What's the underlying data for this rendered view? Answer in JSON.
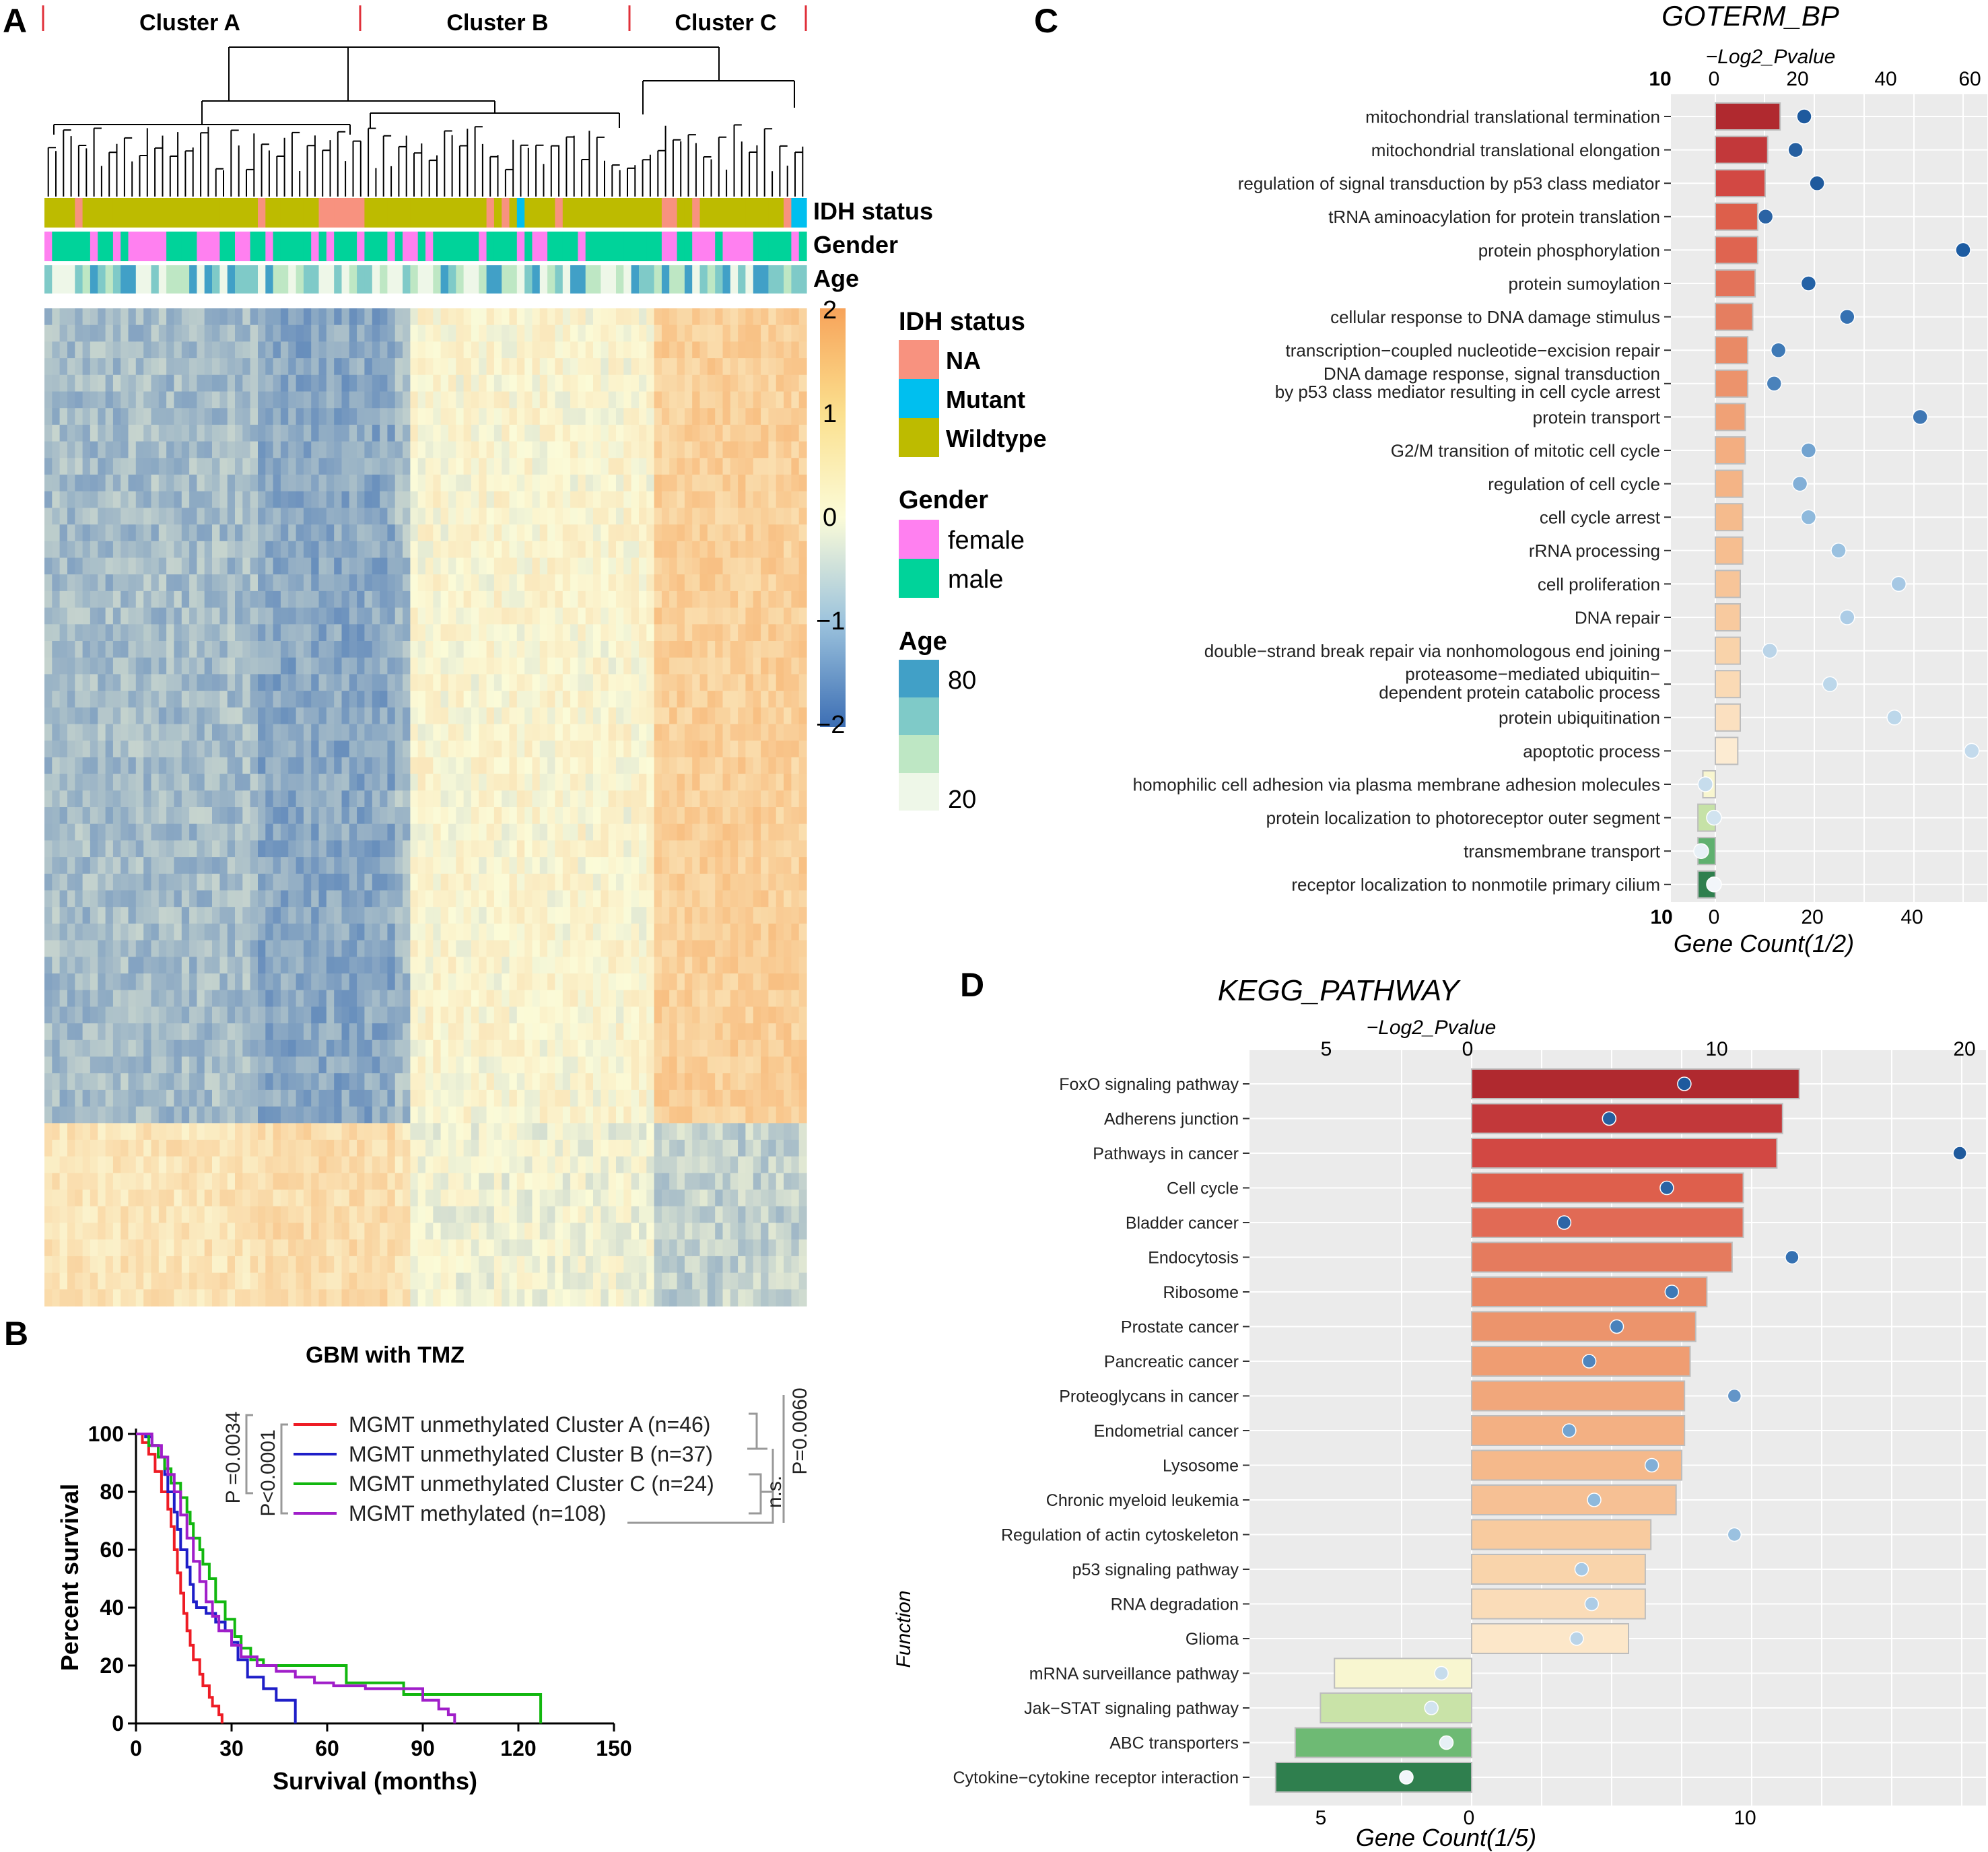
{
  "panel_labels": {
    "a": "A",
    "b": "B",
    "c": "C",
    "d": "D"
  },
  "heatmap": {
    "clusters": [
      "Cluster A",
      "Cluster B",
      "Cluster C"
    ],
    "track_labels": [
      "IDH status",
      "Gender",
      "Age"
    ],
    "colorbar_ticks": [
      "2",
      "1",
      "0",
      "−1",
      "−2"
    ],
    "legend": {
      "idh_title": "IDH status",
      "idh_items": [
        {
          "label": "NA",
          "color": "#F8927F"
        },
        {
          "label": "Mutant",
          "color": "#00BFEF"
        },
        {
          "label": "Wildtype",
          "color": "#BDBB00"
        }
      ],
      "gender_title": "Gender",
      "gender_items": [
        {
          "label": "female",
          "color": "#FF80F0"
        },
        {
          "label": "male",
          "color": "#00D39A"
        }
      ],
      "age_title": "Age",
      "age_items": [
        {
          "label": "80",
          "color": "#41A0C7"
        },
        {
          "label": "",
          "color": "#7FCAC8"
        },
        {
          "label": "",
          "color": "#BEE7C4"
        },
        {
          "label": "20",
          "color": "#EEF7E8"
        }
      ]
    },
    "colors": {
      "low": "#3C6EB4",
      "mid": "#FBFBD8",
      "high": "#F7A35A"
    }
  },
  "survival": {
    "title": "GBM with TMZ",
    "xlabel": "Survival (months)",
    "ylabel": "Percent survival",
    "xticks": [
      "0",
      "30",
      "60",
      "90",
      "120",
      "150"
    ],
    "yticks": [
      "0",
      "20",
      "40",
      "60",
      "80",
      "100"
    ],
    "legend": [
      {
        "label": "MGMT unmethylated Cluster A  (n=46)",
        "color": "#EE1C25"
      },
      {
        "label": "MGMT unmethylated Cluster B (n=37)",
        "color": "#1E1EC8"
      },
      {
        "label": "MGMT unmethylated Cluster C (n=24)",
        "color": "#12B70F"
      },
      {
        "label": "MGMT methylated (n=108)",
        "color": "#A01EC9"
      }
    ],
    "pvals": {
      "p1": "P =0.0034",
      "p2": "P<0.0001",
      "p3": "n.s.",
      "p4": "P=0.0060"
    }
  },
  "chart_data": [
    {
      "type": "bar",
      "title": "GOTERM_BP",
      "top_axis_label": "−Log2_Pvalue",
      "xlabel": "Gene Count(1/2)",
      "top_ticks": [
        "10",
        "0",
        "20",
        "40",
        "60"
      ],
      "bottom_ticks": [
        "10",
        "0",
        "20",
        "40"
      ],
      "categories": [
        "mitochondrial translational termination",
        "mitochondrial translational elongation",
        "regulation of signal transduction by p53 class mediator",
        "tRNA aminoacylation for protein translation",
        "protein phosphorylation",
        "protein sumoylation",
        "cellular response to DNA damage stimulus",
        "transcription−coupled nucleotide−excision repair",
        "DNA damage response, signal transduction by p53 class mediator resulting in cell cycle arrest",
        "protein transport",
        "G2/M transition of mitotic cell cycle",
        "regulation of cell cycle",
        "cell cycle arrest",
        "rRNA processing",
        "cell proliferation",
        "DNA repair",
        "double−strand break repair via nonhomologous end joining",
        "proteasome−mediated ubiquitin−dependent protein catabolic process",
        "protein ubiquitination",
        "apoptotic process",
        "homophilic cell adhesion via plasma membrane adhesion molecules",
        "protein localization to photoreceptor outer segment",
        "transmembrane transport",
        "receptor localization to nonmotile primary cilium"
      ],
      "display_lines": [
        [
          "mitochondrial translational termination"
        ],
        [
          "mitochondrial translational elongation"
        ],
        [
          "regulation of signal transduction by p53 class mediator"
        ],
        [
          "tRNA aminoacylation for protein translation"
        ],
        [
          "protein phosphorylation"
        ],
        [
          "protein sumoylation"
        ],
        [
          "cellular response to DNA damage stimulus"
        ],
        [
          "transcription−coupled nucleotide−excision repair"
        ],
        [
          "DNA damage response, signal transduction",
          "by p53 class mediator resulting in cell cycle arrest"
        ],
        [
          "protein transport"
        ],
        [
          "G2/M transition of mitotic cell cycle"
        ],
        [
          "regulation of cell cycle"
        ],
        [
          "cell cycle arrest"
        ],
        [
          "rRNA processing"
        ],
        [
          "cell proliferation"
        ],
        [
          "DNA repair"
        ],
        [
          "double−strand break repair via nonhomologous end joining"
        ],
        [
          "proteasome−mediated ubiquitin−",
          "dependent protein catabolic process"
        ],
        [
          "protein ubiquitination"
        ],
        [
          "apoptotic process"
        ],
        [
          "homophilic cell adhesion via plasma membrane adhesion molecules"
        ],
        [
          "protein localization to photoreceptor outer segment"
        ],
        [
          "transmembrane transport"
        ],
        [
          "receptor localization to nonmotile primary cilium"
        ]
      ],
      "gene_count": [
        26,
        21,
        20,
        17,
        17,
        16,
        15,
        13,
        13,
        12,
        12,
        11,
        11,
        11,
        10,
        10,
        10,
        10,
        10,
        9,
        -5,
        -7,
        -7,
        -7
      ],
      "neg_log2_pvalue": [
        21,
        19,
        24,
        12,
        58,
        22,
        31,
        15,
        14,
        48,
        22,
        20,
        22,
        29,
        43,
        31,
        13,
        27,
        42,
        60,
        -2,
        0,
        -3,
        0
      ],
      "bar_colors": [
        "#B0292F",
        "#C2383A",
        "#D24843",
        "#DD5F4B",
        "#DF6450",
        "#E3735A",
        "#E57E60",
        "#E98A66",
        "#EC936C",
        "#F0A176",
        "#F3AE81",
        "#F4B486",
        "#F5BB8D",
        "#F6BE90",
        "#F7C599",
        "#F8CA9F",
        "#F9D3AA",
        "#FADAB5",
        "#FBE0C0",
        "#FCEBD2",
        "#F8F6D0",
        "#C6E2A7",
        "#5FB06F",
        "#2F7F4E"
      ],
      "point_colors": [
        "#1E5A9E",
        "#255FA0",
        "#1F5A9D",
        "#2A63A4",
        "#1D5CA2",
        "#2462A6",
        "#3571B2",
        "#3E79B6",
        "#4A82BB",
        "#3E77B4",
        "#72A3D0",
        "#82AFD7",
        "#8EB9DC",
        "#9AC1E0",
        "#A6C8E4",
        "#ACCCE6",
        "#BAD4E8",
        "#BCD7EA",
        "#BCD7EA",
        "#C3DAEC",
        "#C6DCEC",
        "#D1E3EF",
        "#E7F0F6",
        "#F2F6FA"
      ]
    },
    {
      "type": "bar",
      "title": "KEGG_PATHWAY",
      "top_axis_label": "−Log2_Pvalue",
      "xlabel": "Gene Count(1/5)",
      "ylabel": "Function",
      "top_ticks": [
        "5",
        "0",
        "10",
        "20"
      ],
      "bottom_ticks": [
        "5",
        "0",
        "10"
      ],
      "categories": [
        "FoxO signaling pathway",
        "Adherens junction",
        "Pathways in cancer",
        "Cell cycle",
        "Bladder cancer",
        "Endocytosis",
        "Ribosome",
        "Prostate cancer",
        "Pancreatic cancer",
        "Proteoglycans in cancer",
        "Endometrial cancer",
        "Lysosome",
        "Chronic myeloid leukemia",
        "Regulation of actin cytoskeleton",
        "p53 signaling pathway",
        "RNA degradation",
        "Glioma",
        "mRNA surveillance pathway",
        "Jak−STAT signaling pathway",
        "ABC transporters",
        "Cytokine−cytokine receptor interaction"
      ],
      "gene_count": [
        11.7,
        11.1,
        10.9,
        9.7,
        9.7,
        9.3,
        8.4,
        8.0,
        7.8,
        7.6,
        7.6,
        7.5,
        7.3,
        6.4,
        6.2,
        6.2,
        5.6,
        -4.9,
        -5.4,
        -6.3,
        -7.0
      ],
      "neg_log2_pvalue": [
        8.6,
        5.6,
        19.6,
        7.9,
        3.8,
        12.9,
        8.1,
        5.9,
        4.8,
        10.6,
        4.0,
        7.3,
        5.0,
        10.6,
        4.5,
        4.9,
        4.3,
        -1.1,
        -1.5,
        -0.9,
        -2.5
      ],
      "bar_colors": [
        "#B0292F",
        "#C2383A",
        "#D24843",
        "#DE5F4C",
        "#E16A55",
        "#E57B5E",
        "#E98965",
        "#EC946C",
        "#EF9D72",
        "#F1A77B",
        "#F3B083",
        "#F5B98B",
        "#F6C094",
        "#F8CB9F",
        "#F9D4AB",
        "#FADCB8",
        "#FCE7C9",
        "#F8F6D0",
        "#C9E3A8",
        "#6EBA74",
        "#2F7F4E"
      ],
      "point_colors": [
        "#1E5A9E",
        "#255FA0",
        "#1F5A9D",
        "#2A63A4",
        "#2C65A6",
        "#3571B2",
        "#3E79B6",
        "#4A82BB",
        "#4F85BD",
        "#6395C8",
        "#72A3D0",
        "#82AFD7",
        "#8EB9DC",
        "#9AC1E0",
        "#A6C8E4",
        "#ACCCE6",
        "#BAD4E8",
        "#C6DCEC",
        "#D1E3EF",
        "#E7F0F6",
        "#F2F6FA"
      ]
    }
  ]
}
